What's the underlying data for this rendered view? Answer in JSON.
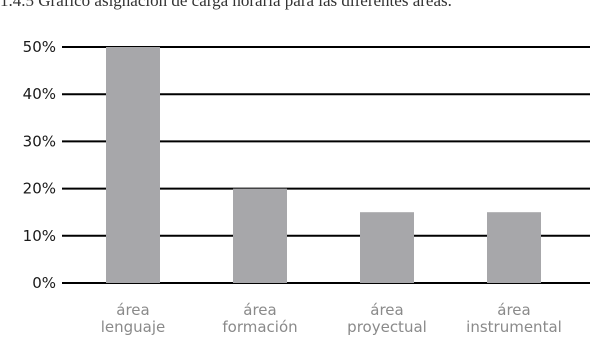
{
  "chart_data": {
    "type": "bar",
    "title": "1.4.5 Gráfico asignación de carga horaria para las diferentes áreas.",
    "categories": [
      [
        "área",
        "lenguaje"
      ],
      [
        "área",
        "formación"
      ],
      [
        "área",
        "proyectual"
      ],
      [
        "área",
        "instrumental"
      ]
    ],
    "values": [
      50,
      20,
      15,
      15
    ],
    "y_ticks": [
      "0%",
      "10%",
      "20%",
      "30%",
      "40%",
      "50%"
    ],
    "ylim": [
      0,
      50
    ],
    "grid": true,
    "bar_color": "#a7a7aa",
    "grid_color": "#000000",
    "xlabel": "",
    "ylabel": ""
  }
}
